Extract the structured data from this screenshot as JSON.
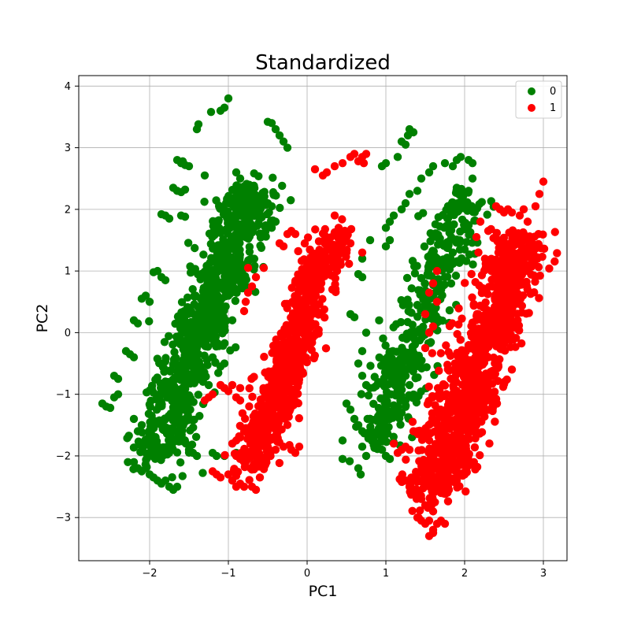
{
  "chart_data": {
    "type": "scatter",
    "title": "Standardized",
    "xlabel": "PC1",
    "ylabel": "PC2",
    "xlim": [
      -2.9,
      3.3
    ],
    "ylim": [
      -3.7,
      4.17
    ],
    "xticks": [
      -2,
      -1,
      0,
      1,
      2,
      3
    ],
    "yticks": [
      -3,
      -2,
      -1,
      0,
      1,
      2,
      3,
      4
    ],
    "xtick_labels": [
      "−2",
      "−1",
      "0",
      "1",
      "2",
      "3"
    ],
    "ytick_labels": [
      "−3",
      "−2",
      "−1",
      "0",
      "1",
      "2",
      "3",
      "4"
    ],
    "grid": true,
    "legend_position": "top-right",
    "series": [
      {
        "name": "0",
        "color": "#008000",
        "clusters": [
          {
            "center": [
              -1.32,
              0.15
            ],
            "spread_along": 2.4,
            "spread_across": 0.32,
            "slope": 3.5,
            "n": 900
          },
          {
            "center": [
              1.45,
              0.2
            ],
            "spread_along": 2.2,
            "spread_across": 0.28,
            "slope": 3.5,
            "n": 450
          }
        ],
        "points": [
          [
            -1.0,
            3.8
          ],
          [
            -1.05,
            3.65
          ],
          [
            -1.1,
            3.6
          ],
          [
            -1.22,
            3.58
          ],
          [
            -0.45,
            3.4
          ],
          [
            -0.5,
            3.42
          ],
          [
            -0.25,
            3.0
          ],
          [
            -0.35,
            3.2
          ],
          [
            -0.4,
            3.3
          ],
          [
            -0.3,
            3.1
          ],
          [
            -1.4,
            3.3
          ],
          [
            -1.38,
            3.38
          ],
          [
            -1.65,
            2.8
          ],
          [
            -1.6,
            2.75
          ],
          [
            -1.55,
            2.72
          ],
          [
            -1.5,
            2.7
          ],
          [
            -1.58,
            2.78
          ],
          [
            -1.65,
            2.3
          ],
          [
            -1.6,
            2.28
          ],
          [
            -1.55,
            2.32
          ],
          [
            -1.7,
            2.35
          ],
          [
            -1.85,
            1.92
          ],
          [
            -1.8,
            1.9
          ],
          [
            -1.75,
            1.85
          ],
          [
            -1.6,
            1.9
          ],
          [
            -1.55,
            1.88
          ],
          [
            -1.9,
            1.0
          ],
          [
            -1.95,
            0.98
          ],
          [
            -1.85,
            0.9
          ],
          [
            -1.8,
            0.85
          ],
          [
            -2.05,
            0.6
          ],
          [
            -2.1,
            0.55
          ],
          [
            -2.0,
            0.5
          ],
          [
            -2.2,
            0.2
          ],
          [
            -2.15,
            0.15
          ],
          [
            -2.3,
            -0.3
          ],
          [
            -2.25,
            -0.35
          ],
          [
            -2.2,
            -0.4
          ],
          [
            -2.45,
            -0.7
          ],
          [
            -2.4,
            -0.75
          ],
          [
            -2.6,
            -1.15
          ],
          [
            -2.55,
            -1.2
          ],
          [
            -2.5,
            -1.22
          ],
          [
            -2.45,
            -1.05
          ],
          [
            -2.4,
            -1.0
          ],
          [
            -2.2,
            -2.1
          ],
          [
            -2.15,
            -2.2
          ],
          [
            -2.1,
            -2.25
          ],
          [
            -2.05,
            -2.2
          ],
          [
            -2.0,
            -2.3
          ],
          [
            -1.95,
            -2.35
          ],
          [
            -1.9,
            -2.4
          ],
          [
            -1.85,
            -2.45
          ],
          [
            -1.8,
            -2.4
          ],
          [
            -1.75,
            -2.5
          ],
          [
            -1.7,
            -2.55
          ],
          [
            -1.65,
            -2.5
          ],
          [
            -2.1,
            -1.5
          ],
          [
            -2.2,
            -1.4
          ],
          [
            -2.15,
            -1.6
          ],
          [
            -1.45,
            -1.95
          ],
          [
            -1.5,
            -1.9
          ],
          [
            -1.4,
            -2.0
          ],
          [
            -1.2,
            -1.95
          ],
          [
            -1.15,
            -2.0
          ],
          [
            -1.05,
            -2.0
          ],
          [
            -0.85,
            -2.0
          ],
          [
            -0.9,
            -1.95
          ],
          [
            -1.05,
            -0.5
          ],
          [
            -1.1,
            -0.55
          ],
          [
            -1.25,
            -0.85
          ],
          [
            -0.9,
            2.6
          ],
          [
            -0.85,
            2.5
          ],
          [
            -0.75,
            2.3
          ],
          [
            -0.65,
            2.2
          ],
          [
            -0.55,
            2.15
          ],
          [
            -0.5,
            2.1
          ],
          [
            -0.45,
            2.05
          ],
          [
            -0.6,
            1.85
          ],
          [
            -0.7,
            1.7
          ],
          [
            -0.45,
            1.7
          ],
          [
            -0.4,
            1.8
          ],
          [
            -0.95,
            0.8
          ],
          [
            -1.0,
            0.6
          ],
          [
            -0.95,
            0.2
          ],
          [
            -1.05,
            0.1
          ],
          [
            -1.3,
            2.55
          ],
          [
            1.3,
            3.3
          ],
          [
            1.35,
            3.25
          ],
          [
            1.28,
            3.2
          ],
          [
            1.2,
            3.1
          ],
          [
            1.25,
            3.05
          ],
          [
            1.15,
            2.85
          ],
          [
            1.0,
            2.75
          ],
          [
            0.95,
            2.7
          ],
          [
            1.9,
            2.8
          ],
          [
            1.95,
            2.85
          ],
          [
            2.05,
            2.8
          ],
          [
            2.1,
            2.75
          ],
          [
            2.1,
            2.5
          ],
          [
            2.05,
            2.3
          ],
          [
            1.9,
            2.35
          ],
          [
            1.85,
            2.7
          ],
          [
            1.75,
            2.75
          ],
          [
            1.6,
            2.7
          ],
          [
            1.55,
            2.6
          ],
          [
            1.45,
            2.5
          ],
          [
            1.4,
            2.3
          ],
          [
            1.3,
            2.25
          ],
          [
            1.25,
            2.1
          ],
          [
            1.2,
            2.0
          ],
          [
            1.1,
            1.9
          ],
          [
            1.05,
            1.8
          ],
          [
            1.0,
            1.7
          ],
          [
            1.05,
            1.5
          ],
          [
            1.0,
            1.4
          ],
          [
            0.8,
            1.5
          ],
          [
            0.7,
            1.2
          ],
          [
            0.65,
            0.95
          ],
          [
            0.7,
            0.9
          ],
          [
            0.55,
            0.3
          ],
          [
            0.6,
            0.25
          ],
          [
            0.75,
            0.0
          ],
          [
            0.7,
            -0.3
          ],
          [
            0.65,
            -0.5
          ],
          [
            0.7,
            -0.7
          ],
          [
            0.75,
            -0.85
          ],
          [
            0.8,
            -0.9
          ],
          [
            0.5,
            -1.15
          ],
          [
            0.55,
            -1.25
          ],
          [
            0.6,
            -1.4
          ],
          [
            0.65,
            -1.5
          ],
          [
            0.7,
            -1.6
          ],
          [
            0.45,
            -1.75
          ],
          [
            0.7,
            -1.85
          ],
          [
            0.75,
            -2.0
          ],
          [
            0.65,
            -2.2
          ],
          [
            0.68,
            -2.3
          ],
          [
            0.45,
            -2.05
          ],
          [
            0.95,
            -1.9
          ],
          [
            1.0,
            -2.0
          ],
          [
            1.05,
            -2.05
          ],
          [
            1.2,
            -1.3
          ],
          [
            1.25,
            -1.1
          ],
          [
            1.3,
            -0.85
          ],
          [
            1.4,
            0.45
          ],
          [
            1.6,
            1.2
          ],
          [
            1.75,
            0.9
          ],
          [
            1.85,
            1.3
          ],
          [
            2.0,
            1.35
          ]
        ]
      },
      {
        "name": "1",
        "color": "#ff0000",
        "clusters": [
          {
            "center": [
              -0.2,
              -0.3
            ],
            "spread_along": 2.0,
            "spread_across": 0.25,
            "slope": 3.8,
            "n": 700
          },
          {
            "center": [
              2.15,
              -0.55
            ],
            "spread_along": 2.3,
            "spread_across": 0.33,
            "slope": 3.6,
            "n": 1000
          }
        ],
        "points": [
          [
            -1.2,
            -2.25
          ],
          [
            -1.15,
            -2.3
          ],
          [
            -1.1,
            -2.35
          ],
          [
            -1.0,
            -2.3
          ],
          [
            -0.95,
            -2.4
          ],
          [
            -0.9,
            -2.5
          ],
          [
            -0.85,
            -2.45
          ],
          [
            -0.8,
            -2.5
          ],
          [
            -0.7,
            -2.5
          ],
          [
            -0.65,
            -2.55
          ],
          [
            -0.6,
            -2.35
          ],
          [
            -0.55,
            -2.2
          ],
          [
            -0.95,
            -1.8
          ],
          [
            -0.9,
            -1.75
          ],
          [
            -0.85,
            -1.7
          ],
          [
            -0.8,
            -1.6
          ],
          [
            -0.75,
            -1.55
          ],
          [
            -0.7,
            -1.5
          ],
          [
            -0.65,
            -1.45
          ],
          [
            -0.6,
            -1.4
          ],
          [
            -0.55,
            -1.35
          ],
          [
            -0.9,
            -2.0
          ],
          [
            -0.85,
            -2.05
          ],
          [
            -0.5,
            -1.85
          ],
          [
            -0.4,
            -1.9
          ],
          [
            -0.3,
            -1.85
          ],
          [
            -0.2,
            -1.9
          ],
          [
            -0.1,
            -1.85
          ],
          [
            -0.15,
            -1.95
          ],
          [
            -1.3,
            -1.1
          ],
          [
            -1.25,
            -1.05
          ],
          [
            -1.2,
            -1.0
          ],
          [
            -1.1,
            -0.85
          ],
          [
            -1.05,
            -0.9
          ],
          [
            -1.0,
            -0.95
          ],
          [
            -0.9,
            -1.05
          ],
          [
            -0.85,
            -1.1
          ],
          [
            -0.85,
            -0.9
          ],
          [
            -0.95,
            -0.85
          ],
          [
            -0.75,
            0.65
          ],
          [
            -0.7,
            0.75
          ],
          [
            -0.65,
            0.9
          ],
          [
            -0.75,
            1.05
          ],
          [
            -0.8,
            0.35
          ],
          [
            -0.78,
            0.5
          ],
          [
            -0.55,
            1.05
          ],
          [
            -0.35,
            1.45
          ],
          [
            -0.3,
            1.4
          ],
          [
            -0.25,
            1.6
          ],
          [
            -0.2,
            1.65
          ],
          [
            -0.15,
            1.6
          ],
          [
            0.1,
            2.65
          ],
          [
            0.2,
            2.55
          ],
          [
            0.25,
            2.6
          ],
          [
            0.35,
            2.7
          ],
          [
            0.45,
            2.75
          ],
          [
            0.55,
            2.85
          ],
          [
            0.6,
            2.9
          ],
          [
            0.7,
            2.85
          ],
          [
            0.75,
            2.9
          ],
          [
            0.72,
            2.75
          ],
          [
            0.65,
            2.78
          ],
          [
            0.35,
            1.9
          ],
          [
            0.4,
            1.7
          ],
          [
            0.45,
            1.6
          ],
          [
            0.5,
            1.55
          ],
          [
            0.55,
            1.45
          ],
          [
            0.5,
            1.3
          ],
          [
            0.7,
            1.3
          ],
          [
            0.42,
            1.15
          ],
          [
            0.38,
            1.0
          ],
          [
            1.2,
            -1.9
          ],
          [
            1.25,
            -1.85
          ],
          [
            1.3,
            -1.9
          ],
          [
            1.15,
            -1.95
          ],
          [
            1.1,
            -1.8
          ],
          [
            1.35,
            -1.6
          ],
          [
            1.4,
            -1.6
          ],
          [
            1.5,
            -0.25
          ],
          [
            1.55,
            0.0
          ],
          [
            1.6,
            0.1
          ],
          [
            1.65,
            0.5
          ],
          [
            1.55,
            0.65
          ],
          [
            1.6,
            0.8
          ],
          [
            1.65,
            1.0
          ],
          [
            1.5,
            0.3
          ],
          [
            2.4,
            2.05
          ],
          [
            2.45,
            2.0
          ],
          [
            2.5,
            1.95
          ],
          [
            2.55,
            2.0
          ],
          [
            2.6,
            1.95
          ],
          [
            2.7,
            1.9
          ],
          [
            2.75,
            2.0
          ],
          [
            2.8,
            1.8
          ],
          [
            2.9,
            2.05
          ],
          [
            2.95,
            2.25
          ],
          [
            3.0,
            2.45
          ],
          [
            2.7,
            1.3
          ],
          [
            2.75,
            1.2
          ],
          [
            2.8,
            1.0
          ],
          [
            2.65,
            0.6
          ],
          [
            2.6,
            0.3
          ],
          [
            2.55,
            0.1
          ],
          [
            2.2,
            1.8
          ],
          [
            2.3,
            1.65
          ],
          [
            2.15,
            1.55
          ],
          [
            1.4,
            -3.0
          ],
          [
            1.45,
            -3.05
          ],
          [
            1.5,
            -3.1
          ],
          [
            1.55,
            -3.05
          ],
          [
            1.6,
            -3.2
          ],
          [
            1.65,
            -3.1
          ],
          [
            1.7,
            -3.05
          ],
          [
            1.55,
            -3.3
          ],
          [
            1.6,
            -3.25
          ],
          [
            1.75,
            -3.1
          ],
          [
            1.25,
            -2.4
          ],
          [
            1.3,
            -2.5
          ],
          [
            1.35,
            -2.55
          ],
          [
            1.4,
            -2.6
          ],
          [
            1.45,
            -2.7
          ],
          [
            1.5,
            -2.8
          ],
          [
            1.6,
            -2.9
          ],
          [
            1.7,
            -2.6
          ],
          [
            1.8,
            -2.55
          ],
          [
            1.9,
            -2.4
          ],
          [
            2.0,
            -2.3
          ],
          [
            1.95,
            -2.1
          ],
          [
            2.3,
            -0.4
          ],
          [
            2.4,
            -0.2
          ],
          [
            2.35,
            -1.1
          ],
          [
            2.15,
            -1.5
          ],
          [
            2.6,
            -0.6
          ]
        ]
      }
    ]
  }
}
